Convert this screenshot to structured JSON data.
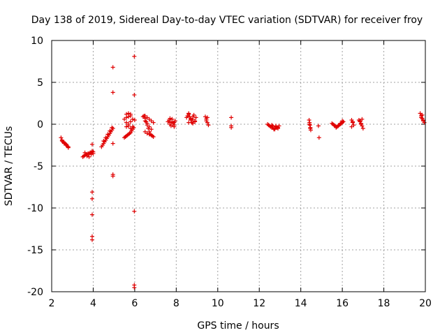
{
  "chart_data": {
    "type": "scatter",
    "title": "Day 138 of 2019, Sidereal Day-to-day VTEC variation (SDTVAR) for receiver froy",
    "xlabel": "GPS time / hours",
    "ylabel": "SDTVAR / TECUs",
    "xlim": [
      2,
      20
    ],
    "ylim": [
      -20,
      10
    ],
    "xticks": [
      2,
      4,
      6,
      8,
      10,
      12,
      14,
      16,
      18,
      20
    ],
    "yticks": [
      -20,
      -15,
      -10,
      -5,
      0,
      5,
      10
    ],
    "grid": true,
    "marker": "+",
    "color": "#e00000",
    "series": [
      {
        "name": "froy",
        "x": [
          2.45,
          2.5,
          2.55,
          2.6,
          2.65,
          2.7,
          2.75,
          2.8,
          2.5,
          2.6,
          2.7,
          2.8,
          3.5,
          3.55,
          3.6,
          3.65,
          3.7,
          3.75,
          3.8,
          3.85,
          3.9,
          3.95,
          4.0,
          3.6,
          3.7,
          3.8,
          3.9,
          4.0,
          3.95,
          3.95,
          3.95,
          3.95,
          3.95,
          3.95,
          3.95,
          4.4,
          4.45,
          4.5,
          4.55,
          4.6,
          4.65,
          4.7,
          4.75,
          4.8,
          4.85,
          4.9,
          4.95,
          4.5,
          4.6,
          4.7,
          4.8,
          4.9,
          4.95,
          4.95,
          4.95,
          4.95,
          4.95,
          5.5,
          5.55,
          5.6,
          5.65,
          5.7,
          5.75,
          5.8,
          5.85,
          5.9,
          5.95,
          5.6,
          5.7,
          5.8,
          5.9,
          5.5,
          5.6,
          5.7,
          5.8,
          5.9,
          6.0,
          5.6,
          5.7,
          5.8,
          5.6,
          5.7,
          5.8,
          5.98,
          5.98,
          5.98,
          5.98,
          5.98,
          6.4,
          6.45,
          6.5,
          6.55,
          6.6,
          6.65,
          6.7,
          6.75,
          6.8,
          6.85,
          6.9,
          6.5,
          6.6,
          6.7,
          6.8,
          6.5,
          6.6,
          6.7,
          6.8,
          6.9,
          6.5,
          6.6,
          6.7,
          7.6,
          7.65,
          7.7,
          7.75,
          7.8,
          7.85,
          7.9,
          7.95,
          7.7,
          7.8,
          7.9,
          7.7,
          7.8,
          7.9,
          8.5,
          8.55,
          8.6,
          8.65,
          8.7,
          8.75,
          8.8,
          8.85,
          8.9,
          8.95,
          8.6,
          8.7,
          8.8,
          8.9,
          8.6,
          8.7,
          8.8,
          9.4,
          9.45,
          9.5,
          9.55,
          9.45,
          9.5,
          10.65,
          10.65,
          10.65,
          12.4,
          12.45,
          12.5,
          12.55,
          12.6,
          12.65,
          12.7,
          12.75,
          12.8,
          12.85,
          12.9,
          12.95,
          12.6,
          12.7,
          12.8,
          12.9,
          14.4,
          14.42,
          14.44,
          14.46,
          14.48,
          14.42,
          14.46,
          14.85,
          14.88,
          15.5,
          15.55,
          15.6,
          15.65,
          15.7,
          15.75,
          15.8,
          15.85,
          15.9,
          15.95,
          16.0,
          16.05,
          15.7,
          15.8,
          15.9,
          16.0,
          16.45,
          16.5,
          16.55,
          16.45,
          16.5,
          16.8,
          16.85,
          16.9,
          16.95,
          17.0,
          16.85,
          16.9,
          16.95,
          19.75,
          19.8,
          19.85,
          19.9,
          19.95,
          19.8,
          19.9,
          19.85
        ],
        "y": [
          -1.6,
          -1.9,
          -2.1,
          -2.2,
          -2.3,
          -2.4,
          -2.6,
          -2.8,
          -2.0,
          -2.3,
          -2.5,
          -2.7,
          -3.9,
          -3.8,
          -3.7,
          -3.6,
          -3.6,
          -3.5,
          -3.5,
          -3.4,
          -3.4,
          -3.3,
          -3.3,
          -3.4,
          -3.8,
          -3.9,
          -3.6,
          -3.5,
          -2.4,
          -8.1,
          -8.9,
          -10.8,
          -13.4,
          -13.8,
          -3.2,
          -2.7,
          -2.5,
          -2.3,
          -2.1,
          -1.9,
          -1.7,
          -1.5,
          -1.3,
          -1.1,
          -0.9,
          -0.7,
          -0.5,
          -2.0,
          -1.6,
          -1.2,
          -0.8,
          -0.4,
          -2.3,
          -6.0,
          -6.2,
          3.8,
          6.8,
          -1.6,
          -1.5,
          -1.4,
          -1.3,
          -1.2,
          -1.1,
          -1.0,
          -0.8,
          -0.6,
          -0.4,
          -0.3,
          0.0,
          0.3,
          0.6,
          0.6,
          0.2,
          -0.2,
          -0.5,
          -0.3,
          0.5,
          1.2,
          1.3,
          1.2,
          0.8,
          0.9,
          1.0,
          8.1,
          3.5,
          -10.4,
          -19.2,
          -19.5,
          0.9,
          1.0,
          0.7,
          0.3,
          -0.1,
          -0.5,
          -0.9,
          -1.2,
          -1.3,
          -1.4,
          -1.5,
          0.4,
          0.1,
          -0.3,
          -0.6,
          1.0,
          0.8,
          0.6,
          0.4,
          0.2,
          -0.9,
          -1.1,
          -1.2,
          0.3,
          0.5,
          0.2,
          -0.2,
          0.6,
          0.1,
          -0.1,
          0.4,
          0.7,
          0.3,
          -0.3,
          0.0,
          0.6,
          0.2,
          0.8,
          1.0,
          1.2,
          0.9,
          0.5,
          0.2,
          0.6,
          1.1,
          0.4,
          0.8,
          0.2,
          0.6,
          0.9,
          0.3,
          1.3,
          0.7,
          0.1,
          0.9,
          0.6,
          0.2,
          -0.1,
          0.4,
          0.8,
          0.8,
          -0.2,
          -0.4,
          0.0,
          -0.1,
          -0.2,
          -0.3,
          -0.4,
          -0.2,
          -0.5,
          -0.6,
          -0.3,
          -0.4,
          -0.5,
          -0.2,
          -0.1,
          -0.6,
          -0.2,
          -0.4,
          0.5,
          0.2,
          -0.1,
          -0.4,
          -0.7,
          0.0,
          -0.5,
          -0.2,
          -1.6,
          0.1,
          0.0,
          -0.1,
          -0.2,
          -0.3,
          -0.3,
          -0.2,
          -0.1,
          0.0,
          0.1,
          0.2,
          0.3,
          -0.4,
          -0.2,
          0.1,
          0.4,
          0.5,
          0.2,
          -0.1,
          -0.3,
          0.3,
          0.5,
          0.3,
          0.1,
          -0.2,
          -0.5,
          0.4,
          0.0,
          0.6,
          1.3,
          1.0,
          0.7,
          0.4,
          0.2,
          0.8,
          0.5,
          1.1
        ]
      }
    ]
  }
}
